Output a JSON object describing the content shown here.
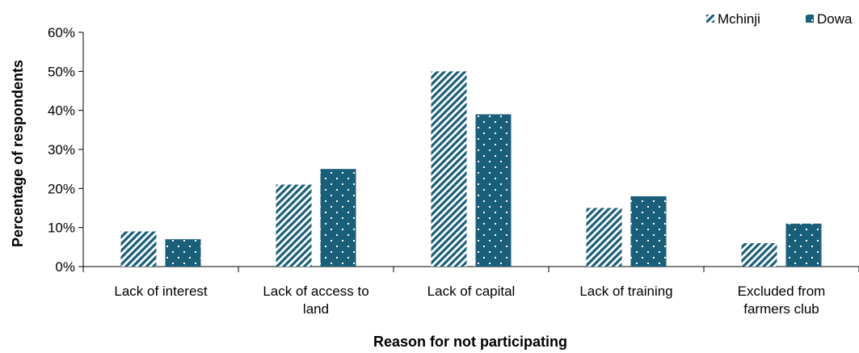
{
  "chart_data": {
    "type": "bar",
    "title": "",
    "xlabel": "Reason for not participating",
    "ylabel": "Percentage of respondents",
    "ylim": [
      0,
      60
    ],
    "yticks": [
      "0%",
      "10%",
      "20%",
      "30%",
      "40%",
      "50%",
      "60%"
    ],
    "categories": [
      [
        "Lack of interest"
      ],
      [
        "Lack of access to",
        "land"
      ],
      [
        "Lack of capital"
      ],
      [
        "Lack of training"
      ],
      [
        "Excluded from",
        "farmers club"
      ]
    ],
    "series": [
      {
        "name": "Mchinji",
        "values": [
          9,
          21,
          50,
          15,
          6
        ],
        "color": "#1a5f7a",
        "pattern": "diagonal-stripes"
      },
      {
        "name": "Dowa",
        "values": [
          7,
          25,
          39,
          18,
          11
        ],
        "color": "#1a5f7a",
        "pattern": "dotted"
      }
    ],
    "legend": "top-right",
    "grid": false
  }
}
